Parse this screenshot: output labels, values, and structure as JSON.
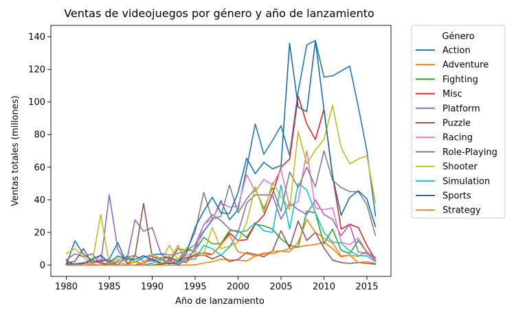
{
  "chart_data": {
    "type": "line",
    "title": "Ventas de videojuegos por género y año de lanzamiento",
    "xlabel": "Año de lanzamiento",
    "ylabel": "Ventas totales (millones)",
    "xlim": [
      1978.2,
      2017.8
    ],
    "ylim": [
      -7,
      147
    ],
    "xticks": [
      1980,
      1985,
      1990,
      1995,
      2000,
      2005,
      2010,
      2015
    ],
    "yticks": [
      0,
      20,
      40,
      60,
      80,
      100,
      120,
      140
    ],
    "grid": false,
    "legend": {
      "title": "Género",
      "placement": "outside-right"
    },
    "x": [
      1980,
      1981,
      1982,
      1983,
      1984,
      1985,
      1986,
      1987,
      1988,
      1989,
      1990,
      1991,
      1992,
      1993,
      1994,
      1995,
      1996,
      1997,
      1998,
      1999,
      2000,
      2001,
      2002,
      2003,
      2004,
      2005,
      2006,
      2007,
      2008,
      2009,
      2010,
      2011,
      2012,
      2013,
      2014,
      2015,
      2016
    ],
    "series": [
      {
        "name": "Action",
        "color": "#1f77b4",
        "values": [
          0.3,
          14.8,
          6.5,
          2.9,
          1.9,
          3.5,
          13.7,
          1.1,
          1.7,
          4.6,
          6.4,
          6.7,
          3.8,
          2.8,
          1.4,
          11.0,
          20.6,
          27.6,
          39.4,
          27.8,
          34.0,
          59.4,
          86.5,
          67.9,
          76.3,
          85.4,
          67.2,
          106.5,
          135.0,
          137.7,
          115.3,
          116.0,
          119.0,
          122.0,
          97.0,
          70.0,
          30.0
        ]
      },
      {
        "name": "Adventure",
        "color": "#ff7f0e",
        "values": [
          0.0,
          0.0,
          0.0,
          0.4,
          0.0,
          0.0,
          0.0,
          0.0,
          0.0,
          0.0,
          0.0,
          0.0,
          0.0,
          0.0,
          0.0,
          0.1,
          1.2,
          2.0,
          3.5,
          3.1,
          3.0,
          2.5,
          5.5,
          7.4,
          7.0,
          8.5,
          10.0,
          11.0,
          12.0,
          12.5,
          14.0,
          10.0,
          5.0,
          6.0,
          5.3,
          8.4,
          3.0
        ]
      },
      {
        "name": "Fighting",
        "color": "#2ca02c",
        "values": [
          0.8,
          0.0,
          0.0,
          0.0,
          0.0,
          1.0,
          0.0,
          5.4,
          2.0,
          0.0,
          0.0,
          0.4,
          1.4,
          10.0,
          9.0,
          8.8,
          17.0,
          13.0,
          13.0,
          21.0,
          21.0,
          17.0,
          25.0,
          24.0,
          22.0,
          16.0,
          12.0,
          11.0,
          33.0,
          32.0,
          13.0,
          22.0,
          9.0,
          7.0,
          15.0,
          7.8,
          4.5
        ]
      },
      {
        "name": "Misc",
        "color": "#d62728",
        "values": [
          2.7,
          0.0,
          0.9,
          2.1,
          1.5,
          0.0,
          0.0,
          0.0,
          0.0,
          1.3,
          4.0,
          0.4,
          3.3,
          0.0,
          3.6,
          6.5,
          7.5,
          6.5,
          12.3,
          19.7,
          15.0,
          15.5,
          25.0,
          30.5,
          43.5,
          60.0,
          65.0,
          103.5,
          86.5,
          77.0,
          95.5,
          55.0,
          22.0,
          25.0,
          23.0,
          12.0,
          3.0
        ]
      },
      {
        "name": "Platform",
        "color": "#9467bd",
        "values": [
          3.2,
          6.9,
          5.0,
          6.9,
          0.7,
          43.2,
          9.3,
          1.7,
          27.7,
          20.7,
          22.9,
          7.2,
          6.1,
          7.1,
          8.8,
          12.4,
          24.5,
          30.9,
          27.3,
          22.0,
          20.0,
          38.0,
          43.0,
          43.0,
          43.0,
          28.0,
          38.0,
          34.0,
          31.0,
          40.0,
          31.0,
          28.0,
          18.0,
          25.0,
          8.0,
          7.0,
          3.0
        ]
      },
      {
        "name": "Puzzle",
        "color": "#8c564b",
        "values": [
          1.2,
          2.2,
          10.0,
          0.8,
          3.1,
          3.2,
          0.0,
          0.0,
          5.6,
          37.8,
          5.0,
          3.5,
          4.6,
          2.1,
          4.6,
          5.4,
          6.3,
          3.7,
          6.1,
          2.1,
          3.4,
          7.7,
          6.5,
          5.0,
          8.5,
          21.0,
          10.5,
          27.0,
          15.0,
          20.0,
          10.5,
          3.0,
          1.5,
          1.0,
          1.5,
          1.0,
          0.5
        ]
      },
      {
        "name": "Racing",
        "color": "#e377c2",
        "values": [
          0.0,
          0.5,
          1.6,
          0.0,
          6.0,
          0.0,
          1.9,
          0.0,
          2.0,
          0.0,
          6.3,
          4.0,
          1.8,
          2.6,
          5.9,
          8.0,
          25.0,
          28.0,
          38.0,
          35.5,
          36.0,
          55.5,
          45.0,
          52.5,
          49.0,
          58.5,
          36.0,
          39.0,
          70.0,
          35.0,
          34.0,
          35.0,
          14.0,
          12.5,
          16.5,
          8.0,
          3.5
        ]
      },
      {
        "name": "Role-Playing",
        "color": "#7f7f7f",
        "values": [
          0.0,
          0.0,
          0.0,
          0.0,
          0.0,
          0.0,
          2.5,
          4.6,
          5.9,
          2.2,
          2.5,
          4.5,
          5.0,
          2.5,
          9.0,
          20.0,
          44.5,
          28.0,
          30.0,
          49.0,
          32.0,
          40.5,
          47.0,
          34.5,
          47.5,
          33.0,
          57.0,
          47.5,
          60.0,
          48.0,
          70.0,
          52.0,
          47.5,
          45.0,
          45.0,
          37.0,
          18.0
        ]
      },
      {
        "name": "Shooter",
        "color": "#bcbd22",
        "values": [
          7.1,
          10.0,
          5.0,
          0.5,
          31.1,
          1.0,
          3.9,
          1.7,
          1.8,
          1.2,
          7.0,
          2.6,
          12.0,
          3.1,
          10.7,
          8.0,
          7.0,
          23.0,
          10.0,
          11.5,
          14.0,
          26.0,
          48.0,
          32.0,
          50.5,
          42.0,
          34.0,
          82.0,
          62.0,
          70.5,
          77.0,
          98.0,
          72.0,
          62.0,
          65.0,
          67.0,
          38.0
        ]
      },
      {
        "name": "Simulation",
        "color": "#17becf",
        "values": [
          0.0,
          0.5,
          0.0,
          0.0,
          0.0,
          0.0,
          0.0,
          0.0,
          0.0,
          0.0,
          1.1,
          3.3,
          1.2,
          0.5,
          3.6,
          3.5,
          12.0,
          10.0,
          6.0,
          11.0,
          20.0,
          21.0,
          26.0,
          21.0,
          20.0,
          49.0,
          22.0,
          50.0,
          46.0,
          32.0,
          20.0,
          14.0,
          13.5,
          8.5,
          5.8,
          5.5,
          2.0
        ]
      },
      {
        "name": "Sports",
        "color": "#1b6da8",
        "values": [
          0.5,
          0.8,
          1.0,
          3.5,
          6.0,
          1.5,
          5.5,
          3.6,
          3.5,
          5.7,
          3.0,
          1.4,
          0.8,
          1.5,
          7.5,
          23.0,
          33.0,
          41.5,
          32.0,
          31.5,
          44.5,
          65.5,
          56.0,
          63.0,
          59.0,
          61.0,
          136.0,
          97.0,
          94.0,
          137.5,
          95.5,
          54.5,
          30.5,
          41.5,
          45.5,
          40.5,
          23.5
        ]
      },
      {
        "name": "Strategy",
        "color": "#f0842a",
        "values": [
          0.0,
          0.0,
          0.0,
          0.0,
          0.0,
          0.0,
          0.0,
          0.0,
          0.0,
          0.0,
          0.0,
          1.2,
          2.0,
          12.0,
          1.6,
          6.2,
          6.0,
          6.5,
          12.5,
          18.5,
          8.0,
          7.0,
          5.5,
          6.5,
          8.5,
          8.5,
          8.0,
          14.0,
          28.0,
          20.0,
          16.5,
          13.5,
          5.5,
          6.0,
          1.5,
          2.0,
          1.0
        ]
      }
    ]
  }
}
